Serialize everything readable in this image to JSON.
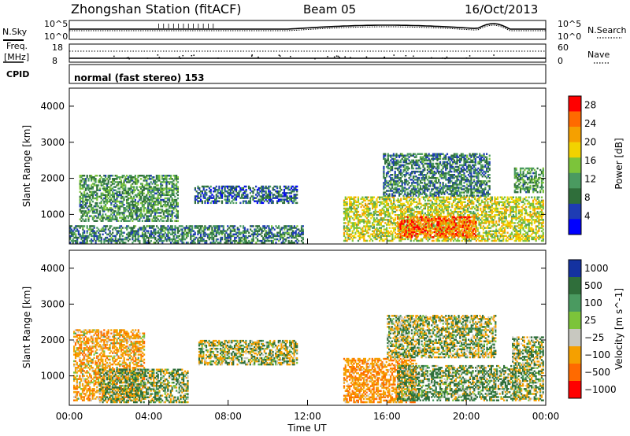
{
  "header": {
    "station": "Zhongshan Station (fitACF)",
    "beam": "Beam 05",
    "date": "16/Oct/2013"
  },
  "summary_panels": {
    "nsky_label": "N.Sky",
    "nsky_ticks": [
      "10^5",
      "10^0"
    ],
    "nsearch_label": "N.Search",
    "nsearch_ticks": [
      "10^5",
      "10^0"
    ],
    "freq_label_line1": "Freq.",
    "freq_label_line2": "[MHz]",
    "freq_ticks": [
      "18",
      "8"
    ],
    "nave_label": "Nave",
    "nave_ticks": [
      "60",
      "0"
    ],
    "cpid_label": "CPID",
    "cpid_text": "normal (fast stereo) 153"
  },
  "colors": {
    "power": [
      "#0000ff",
      "#1e3cb4",
      "#2f6e3a",
      "#4a9a60",
      "#7cc43a",
      "#f2d200",
      "#f5a000",
      "#ff6a00",
      "#ff0000"
    ],
    "velocity": [
      "#1432a0",
      "#2f6e3a",
      "#4a9a60",
      "#7cc43a",
      "#c8c8c0",
      "#f5a000",
      "#ff6a00",
      "#ff0000"
    ]
  },
  "chart_data": [
    {
      "type": "heatmap",
      "panel": "power",
      "ylabel": "Slant Range [km]",
      "ylim": [
        180,
        4500
      ],
      "yticks": [
        "1000",
        "2000",
        "3000",
        "4000"
      ],
      "xlim": [
        0,
        24
      ],
      "xticks": [
        "00:00",
        "04:00",
        "08:00",
        "12:00",
        "16:00",
        "20:00",
        "00:00"
      ],
      "colorbar_label": "Power [dB]",
      "colorbar_ticks": [
        "4",
        "8",
        "12",
        "16",
        "20",
        "24",
        "28"
      ],
      "colorbar_range": [
        0,
        30
      ],
      "echo_regions": [
        {
          "t0": 0.0,
          "t1": 11.8,
          "r0": 200,
          "r1": 700,
          "v": 9
        },
        {
          "t0": 0.5,
          "t1": 5.5,
          "r0": 800,
          "r1": 2100,
          "v": 11
        },
        {
          "t0": 6.3,
          "t1": 11.5,
          "r0": 1300,
          "r1": 1800,
          "v": 7
        },
        {
          "t0": 13.8,
          "t1": 23.9,
          "r0": 250,
          "r1": 1500,
          "v": 17
        },
        {
          "t0": 15.8,
          "t1": 21.2,
          "r0": 1500,
          "r1": 2700,
          "v": 9
        },
        {
          "t0": 16.5,
          "t1": 20.5,
          "r0": 350,
          "r1": 950,
          "v": 25
        },
        {
          "t0": 22.4,
          "t1": 23.9,
          "r0": 1600,
          "r1": 2300,
          "v": 11
        }
      ]
    },
    {
      "type": "heatmap",
      "panel": "velocity",
      "ylabel": "Slant Range [km]",
      "ylim": [
        180,
        4500
      ],
      "yticks": [
        "1000",
        "2000",
        "3000",
        "4000"
      ],
      "xlim": [
        0,
        24
      ],
      "xticks": [
        "00:00",
        "04:00",
        "08:00",
        "12:00",
        "16:00",
        "20:00",
        "00:00"
      ],
      "xlabel": "Time UT",
      "colorbar_label": "Velocity [m s^-1]",
      "colorbar_ticks": [
        "1000",
        "500",
        "100",
        "25",
        "-25",
        "-100",
        "-500",
        "-1000"
      ],
      "echo_regions": [
        {
          "t0": 0.2,
          "t1": 3.8,
          "r0": 300,
          "r1": 2300,
          "v": -300
        },
        {
          "t0": 1.5,
          "t1": 6.0,
          "r0": 250,
          "r1": 1200,
          "v": 80
        },
        {
          "t0": 6.5,
          "t1": 11.5,
          "r0": 1300,
          "r1": 2000,
          "v": 0
        },
        {
          "t0": 13.8,
          "t1": 17.5,
          "r0": 250,
          "r1": 1500,
          "v": -400
        },
        {
          "t0": 16.5,
          "t1": 22.5,
          "r0": 300,
          "r1": 1300,
          "v": 150
        },
        {
          "t0": 16.0,
          "t1": 21.5,
          "r0": 1500,
          "r1": 2700,
          "v": 0
        },
        {
          "t0": 22.3,
          "t1": 23.9,
          "r0": 300,
          "r1": 2100,
          "v": 60
        }
      ]
    }
  ]
}
